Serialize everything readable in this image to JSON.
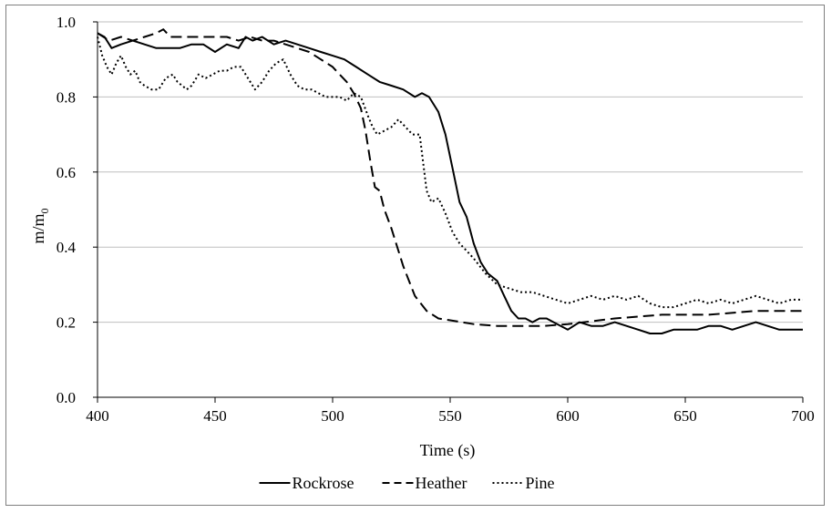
{
  "chart_data": {
    "type": "line",
    "title": "",
    "xlabel": "Time (s)",
    "ylabel": "m/m",
    "ylabel_sub": "0",
    "xlim": [
      400,
      700
    ],
    "ylim": [
      0,
      1.0
    ],
    "x_ticks": [
      "400",
      "450",
      "500",
      "550",
      "600",
      "650",
      "700"
    ],
    "y_ticks": [
      "0.0",
      "0.2",
      "0.4",
      "0.6",
      "0.8",
      "1.0"
    ],
    "grid": "horizontal",
    "legend_position": "bottom",
    "series": [
      {
        "name": "Rockrose",
        "style": "solid",
        "color": "#000000",
        "x": [
          400,
          403,
          406,
          410,
          415,
          420,
          425,
          430,
          435,
          440,
          445,
          450,
          455,
          460,
          463,
          466,
          470,
          475,
          480,
          485,
          490,
          495,
          500,
          505,
          510,
          515,
          520,
          525,
          530,
          535,
          538,
          541,
          545,
          548,
          551,
          554,
          557,
          560,
          563,
          566,
          570,
          573,
          576,
          579,
          582,
          585,
          588,
          591,
          594,
          597,
          600,
          605,
          610,
          615,
          620,
          625,
          630,
          635,
          640,
          645,
          650,
          655,
          660,
          665,
          670,
          675,
          680,
          685,
          690,
          695,
          700
        ],
        "y": [
          0.97,
          0.96,
          0.93,
          0.94,
          0.95,
          0.94,
          0.93,
          0.93,
          0.93,
          0.94,
          0.94,
          0.92,
          0.94,
          0.93,
          0.96,
          0.95,
          0.96,
          0.94,
          0.95,
          0.94,
          0.93,
          0.92,
          0.91,
          0.9,
          0.88,
          0.86,
          0.84,
          0.83,
          0.82,
          0.8,
          0.81,
          0.8,
          0.76,
          0.7,
          0.61,
          0.52,
          0.48,
          0.41,
          0.36,
          0.33,
          0.31,
          0.27,
          0.23,
          0.21,
          0.21,
          0.2,
          0.21,
          0.21,
          0.2,
          0.19,
          0.18,
          0.2,
          0.19,
          0.19,
          0.2,
          0.19,
          0.18,
          0.17,
          0.17,
          0.18,
          0.18,
          0.18,
          0.19,
          0.19,
          0.18,
          0.19,
          0.2,
          0.19,
          0.18,
          0.18,
          0.18
        ]
      },
      {
        "name": "Heather",
        "style": "dashed",
        "color": "#000000",
        "x": [
          400,
          405,
          410,
          415,
          420,
          425,
          428,
          431,
          435,
          440,
          445,
          450,
          455,
          460,
          465,
          470,
          475,
          480,
          485,
          490,
          495,
          500,
          503,
          506,
          509,
          512,
          514,
          516,
          518,
          520,
          522,
          525,
          530,
          535,
          540,
          545,
          550,
          555,
          560,
          570,
          580,
          590,
          600,
          620,
          640,
          660,
          680,
          700
        ],
        "y": [
          0.97,
          0.95,
          0.96,
          0.95,
          0.96,
          0.97,
          0.98,
          0.96,
          0.96,
          0.96,
          0.96,
          0.96,
          0.96,
          0.95,
          0.96,
          0.95,
          0.95,
          0.94,
          0.93,
          0.92,
          0.9,
          0.88,
          0.86,
          0.84,
          0.81,
          0.77,
          0.71,
          0.63,
          0.56,
          0.55,
          0.5,
          0.45,
          0.35,
          0.27,
          0.23,
          0.21,
          0.205,
          0.2,
          0.195,
          0.19,
          0.19,
          0.19,
          0.195,
          0.21,
          0.22,
          0.22,
          0.23,
          0.23
        ]
      },
      {
        "name": "Pine",
        "style": "dotted",
        "color": "#000000",
        "x": [
          400,
          402,
          404,
          406,
          408,
          410,
          412,
          414,
          416,
          418,
          420,
          423,
          426,
          429,
          432,
          434,
          436,
          438,
          440,
          443,
          446,
          449,
          452,
          455,
          458,
          461,
          464,
          467,
          470,
          473,
          476,
          479,
          482,
          485,
          488,
          491,
          494,
          497,
          500,
          503,
          506,
          509,
          512,
          515,
          517,
          519,
          522,
          525,
          528,
          531,
          534,
          537,
          540,
          542,
          545,
          548,
          551,
          554,
          557,
          560,
          565,
          570,
          575,
          580,
          585,
          590,
          595,
          600,
          605,
          610,
          615,
          620,
          625,
          630,
          635,
          640,
          645,
          650,
          655,
          660,
          665,
          670,
          675,
          680,
          685,
          690,
          695,
          700
        ],
        "y": [
          0.96,
          0.91,
          0.88,
          0.86,
          0.89,
          0.91,
          0.88,
          0.86,
          0.87,
          0.84,
          0.83,
          0.82,
          0.82,
          0.85,
          0.86,
          0.84,
          0.83,
          0.82,
          0.83,
          0.86,
          0.85,
          0.86,
          0.87,
          0.87,
          0.88,
          0.88,
          0.85,
          0.82,
          0.84,
          0.87,
          0.89,
          0.9,
          0.86,
          0.83,
          0.82,
          0.82,
          0.81,
          0.8,
          0.8,
          0.8,
          0.79,
          0.81,
          0.8,
          0.75,
          0.72,
          0.7,
          0.71,
          0.72,
          0.74,
          0.72,
          0.7,
          0.7,
          0.55,
          0.52,
          0.53,
          0.49,
          0.44,
          0.41,
          0.39,
          0.37,
          0.33,
          0.3,
          0.29,
          0.28,
          0.28,
          0.27,
          0.26,
          0.25,
          0.26,
          0.27,
          0.26,
          0.27,
          0.26,
          0.27,
          0.25,
          0.24,
          0.24,
          0.25,
          0.26,
          0.25,
          0.26,
          0.25,
          0.26,
          0.27,
          0.26,
          0.25,
          0.26,
          0.26
        ]
      }
    ]
  }
}
